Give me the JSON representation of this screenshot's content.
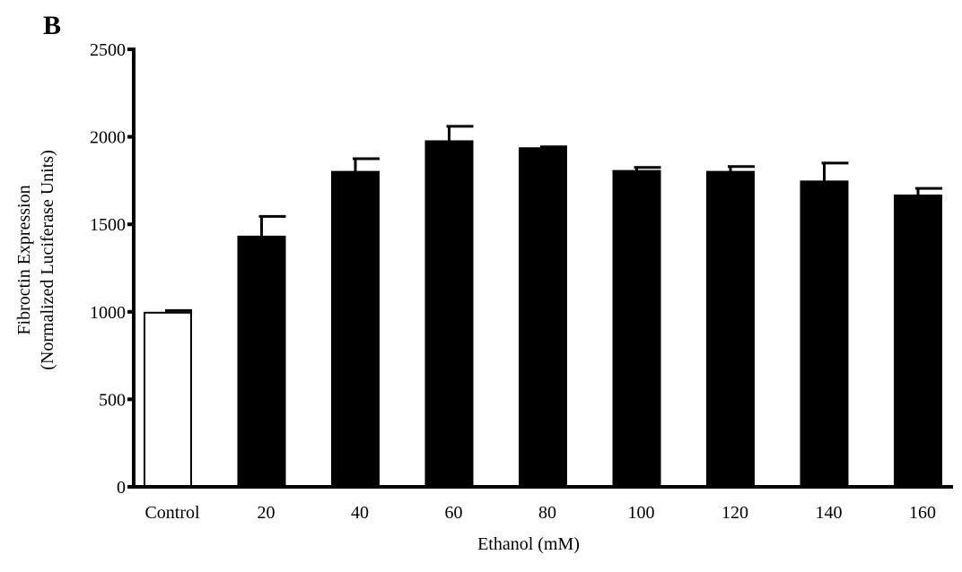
{
  "panel_label": "B",
  "chart_data": {
    "type": "bar",
    "panel_label": "B",
    "categories": [
      "Control",
      "20",
      "40",
      "60",
      "80",
      "100",
      "120",
      "140",
      "160"
    ],
    "values": [
      995,
      1430,
      1800,
      1975,
      1935,
      1805,
      1800,
      1745,
      1665
    ],
    "errors": [
      12,
      115,
      75,
      85,
      8,
      20,
      30,
      105,
      40
    ],
    "bar_fills": [
      "#ffffff",
      "#000000",
      "#000000",
      "#000000",
      "#000000",
      "#000000",
      "#000000",
      "#000000",
      "#000000"
    ],
    "xlabel": "Ethanol (mM)",
    "ylabel_line1": "Fibroctin Expression",
    "ylabel_line2": "(Normalized Luciferase Units)",
    "ylim": [
      0,
      2500
    ],
    "yticks": [
      0,
      500,
      1000,
      1500,
      2000,
      2500
    ],
    "ytick_labels": [
      "0",
      "500",
      "1000",
      "1500",
      "2000",
      "2500"
    ],
    "grid": false,
    "legend": "none"
  }
}
